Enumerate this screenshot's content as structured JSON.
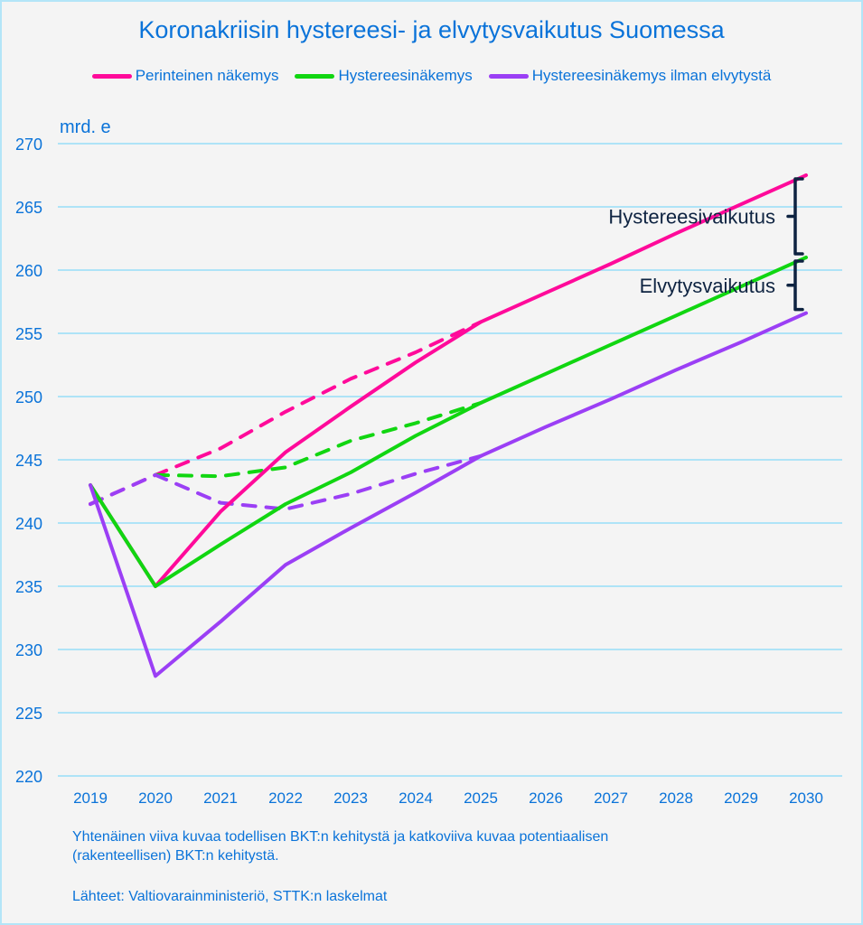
{
  "chart_data": {
    "type": "line",
    "title": "Koronakriisin hystereesi- ja elvytysvaikutus Suomessa",
    "ylabel": "mrd. e",
    "xlabel": "",
    "ylim": [
      220,
      270
    ],
    "yticks": [
      220,
      225,
      230,
      235,
      240,
      245,
      250,
      255,
      260,
      265,
      270
    ],
    "grid": true,
    "legend_position": "top",
    "categories": [
      "2019",
      "2020",
      "2021",
      "2022",
      "2023",
      "2024",
      "2025",
      "2026",
      "2027",
      "2028",
      "2029",
      "2030"
    ],
    "series": [
      {
        "name": "Perinteinen näkemys",
        "color": "#ff0a9a",
        "style": "solid",
        "values": [
          243.0,
          235.0,
          240.9,
          245.6,
          249.2,
          252.7,
          255.9,
          258.2,
          260.5,
          262.9,
          265.2,
          267.5
        ]
      },
      {
        "name": "Hystereesinäkemys",
        "color": "#11d611",
        "style": "solid",
        "values": [
          243.0,
          235.0,
          238.3,
          241.5,
          244.0,
          246.9,
          249.5,
          251.8,
          254.1,
          256.4,
          258.7,
          261.0
        ]
      },
      {
        "name": "Hystereesinäkemys ilman elvytystä",
        "color": "#9b3ff5",
        "style": "solid",
        "values": [
          243.0,
          227.9,
          232.2,
          236.7,
          239.6,
          242.4,
          245.3,
          247.6,
          249.8,
          252.1,
          254.3,
          256.6
        ]
      },
      {
        "name": "Perinteinen näkemys (potentiaalinen)",
        "color": "#ff0a9a",
        "style": "dashed",
        "values": [
          241.5,
          243.8,
          245.9,
          248.8,
          251.4,
          253.5,
          255.9,
          null,
          null,
          null,
          null,
          null
        ]
      },
      {
        "name": "Hystereesinäkemys (potentiaalinen)",
        "color": "#11d611",
        "style": "dashed",
        "values": [
          null,
          243.8,
          243.7,
          244.4,
          246.5,
          247.9,
          249.5,
          null,
          null,
          null,
          null,
          null
        ]
      },
      {
        "name": "Hystereesinäkemys ilman elvytystä (potentiaalinen)",
        "color": "#9b3ff5",
        "style": "dashed",
        "values": [
          241.5,
          243.8,
          241.6,
          241.1,
          242.3,
          243.9,
          245.3,
          null,
          null,
          null,
          null,
          null
        ]
      }
    ],
    "legend": [
      {
        "label": "Perinteinen näkemys",
        "color": "#ff0a9a"
      },
      {
        "label": "Hystereesinäkemys",
        "color": "#11d611"
      },
      {
        "label": "Hystereesinäkemys ilman elvytystä",
        "color": "#9b3ff5"
      }
    ],
    "annotations": [
      {
        "label": "Hystereesivaikutus",
        "from": 261.0,
        "to": 267.5,
        "at": "2030"
      },
      {
        "label": "Elvytysvaikutus",
        "from": 256.6,
        "to": 261.0,
        "at": "2030"
      }
    ],
    "notes": [
      "Yhtenäinen viiva kuvaa todellisen BKT:n kehitystä ja katkoviiva kuvaa potentiaalisen",
      "(rakenteellisen) BKT:n kehitystä."
    ],
    "source": "Lähteet: Valtiovarainministeriö, STTK:n laskelmat"
  },
  "colors": {
    "text": "#0a73d9",
    "grid": "#aee3f7",
    "annotation": "#0e2341"
  }
}
